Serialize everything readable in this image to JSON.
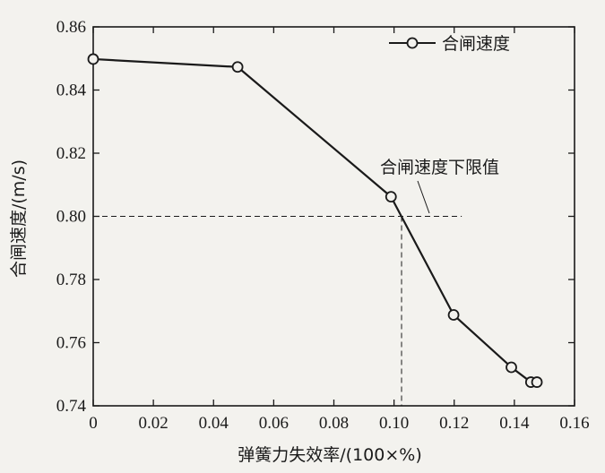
{
  "chart_data": {
    "type": "line",
    "title": "",
    "xlabel": "弹簧力失效率/(100×%)",
    "ylabel": "合闸速度/(m/s)",
    "xlim": [
      0,
      0.16
    ],
    "ylim": [
      0.74,
      0.86
    ],
    "xticks": [
      0,
      0.02,
      0.04,
      0.06,
      0.08,
      0.1,
      0.12,
      0.14,
      0.16
    ],
    "xtick_labels": [
      "0",
      "0.02",
      "0.04",
      "0.06",
      "0.08",
      "0.10",
      "0.12",
      "0.14",
      "0.16"
    ],
    "yticks": [
      0.74,
      0.76,
      0.78,
      0.8,
      0.82,
      0.84,
      0.86
    ],
    "ytick_labels": [
      "0.74",
      "0.76",
      "0.78",
      "0.80",
      "0.82",
      "0.84",
      "0.86"
    ],
    "grid": false,
    "legend_position": "top-right",
    "series": [
      {
        "name": "合闸速度",
        "marker": "open-circle",
        "color": "#1a1a1a",
        "x": [
          0,
          0.048,
          0.099,
          0.1198,
          0.139,
          0.1455,
          0.1475
        ],
        "y": [
          0.8498,
          0.8473,
          0.8062,
          0.7688,
          0.7522,
          0.7475,
          0.7475
        ]
      }
    ],
    "reference_line": {
      "label": "合闸速度下限值",
      "y": 0.8,
      "x_intersect": 0.1025,
      "x_end": 0.1225,
      "style": "dashed"
    }
  }
}
